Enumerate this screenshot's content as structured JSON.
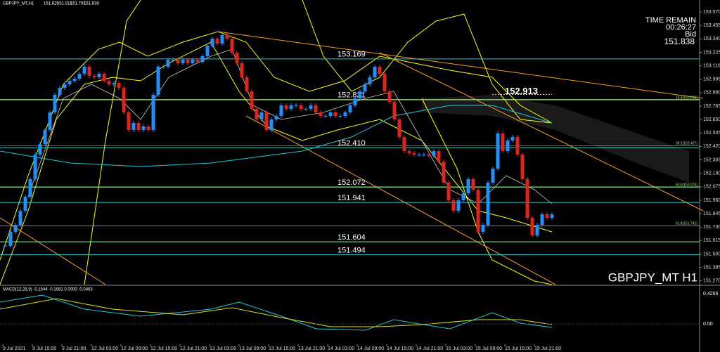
{
  "header": {
    "symbol": "GBPJPY_MT,H1",
    "ohlc": [
      151.829,
      151.918,
      151.793,
      151.838
    ]
  },
  "info": {
    "time_label": "TIME REMAIN",
    "time": "00:26:27",
    "bid_label": "Bid",
    "bid": 151.838,
    "footer": "GBPJPY_MT H1"
  },
  "chart_data": {
    "type": "candlestick",
    "ylim": [
      151.238,
      153.673
    ],
    "yticks": [
      {
        "value": 153.57,
        "label": "153.570"
      },
      153.455,
      {
        "value": 153.34,
        "label": "153.340"
      },
      153.225,
      {
        "value": 153.11,
        "label": "153.110"
      },
      152.995,
      {
        "value": 152.88,
        "label": "152.880"
      },
      152.765,
      {
        "value": 152.65,
        "label": "152.650"
      },
      152.535,
      {
        "value": 152.42,
        "label": "152.420"
      },
      152.305,
      {
        "value": 152.19,
        "label": "152.190"
      },
      152.075,
      {
        "value": 151.96,
        "label": "151.960"
      },
      151.845,
      {
        "value": 151.73,
        "label": "151.730"
      },
      151.615,
      {
        "value": 151.5,
        "label": "151.500"
      },
      151.385,
      {
        "value": 151.27,
        "label": "151.270"
      }
    ],
    "x": [
      "9 Jul 2021",
      "9 Jul 15:00",
      "9 Jul 21:00",
      "12 Jul 03:00",
      "12 Jul 09:00",
      "12 Jul 15:00",
      "12 Jul 21:00",
      "13 Jul 03:00",
      "13 Jul 09:00",
      "13 Jul 15:00",
      "13 Jul 21:00",
      "14 Jul 03:00",
      "14 Jul 09:00",
      "14 Jul 15:00",
      "14 Jul 21:00",
      "15 Jul 03:00",
      "15 Jul 09:00",
      "15 Jul 15:00",
      "15 Jul 21:00"
    ],
    "closes": [
      151.568,
      151.689,
      151.749,
      151.869,
      151.989,
      152.14,
      152.35,
      152.44,
      152.561,
      152.711,
      152.861,
      152.921,
      152.951,
      152.981,
      152.999,
      153.042,
      153.102,
      153.024,
      153.012,
      153.042,
      152.981,
      152.951,
      152.963,
      152.921,
      152.711,
      152.561,
      152.621,
      152.561,
      152.591,
      152.561,
      152.861,
      153.102,
      153.102,
      153.162,
      153.162,
      153.132,
      153.162,
      153.132,
      153.162,
      153.144,
      153.192,
      153.282,
      153.342,
      153.3,
      153.372,
      153.342,
      153.222,
      153.132,
      153.012,
      152.891,
      152.741,
      152.651,
      152.711,
      152.561,
      152.651,
      152.681,
      152.771,
      152.741,
      152.771,
      152.771,
      152.741,
      152.741,
      152.771,
      152.711,
      152.681,
      152.681,
      152.711,
      152.681,
      152.681,
      152.711,
      152.771,
      152.831,
      152.891,
      152.951,
      153.012,
      153.102,
      153.042,
      152.891,
      152.801,
      152.651,
      152.5,
      152.38,
      152.362,
      152.35,
      152.35,
      152.35,
      152.338,
      152.38,
      152.29,
      152.11,
      151.959,
      151.869,
      151.959,
      152.019,
      152.14,
      152.049,
      151.689,
      151.749,
      152.11,
      152.23,
      152.531,
      152.38,
      152.471,
      152.501,
      152.35,
      152.14,
      151.809,
      151.658,
      151.749,
      151.839,
      151.809,
      151.838
    ],
    "up_color": "#1e90ff",
    "down_color": "#e0241b",
    "levels": [
      {
        "value": 153.169,
        "label": "153.169"
      },
      {
        "value": 152.821,
        "label": "152.821"
      },
      {
        "value": 152.41,
        "label": "152.410"
      },
      {
        "value": 152.072,
        "label": "152.072"
      },
      {
        "value": 151.941,
        "label": "151.941"
      },
      {
        "value": 151.604,
        "label": "151.604"
      },
      {
        "value": 151.494,
        "label": "151.494"
      }
    ],
    "fib": [
      {
        "value": 152.818,
        "label": "23.6(152.818)"
      },
      {
        "value": 152.427,
        "label": "38.2(152.427)"
      },
      {
        "value": 152.074,
        "label": "50.0(152.074)"
      },
      {
        "value": 151.741,
        "label": "61.8(151.741)"
      }
    ],
    "highlight": {
      "value": 152.913,
      "label": "152.913"
    }
  },
  "macd": {
    "title": "MACD(12,26,9) -0.1544 -0.1081 0.0000 -0.0463",
    "axis": [
      "0.4255",
      "0.00"
    ]
  }
}
